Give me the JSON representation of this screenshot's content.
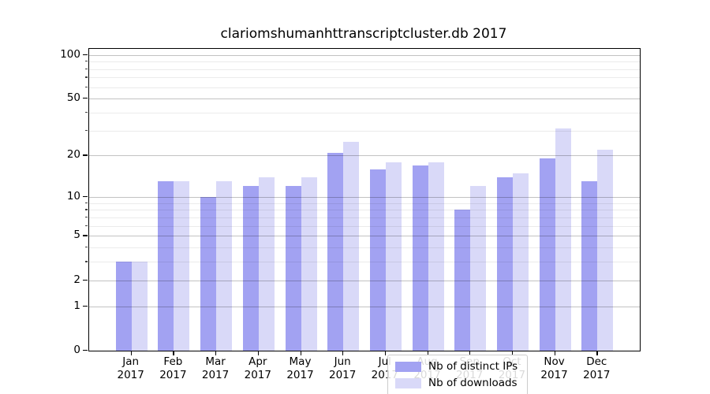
{
  "title": "clariomshumanhttranscriptcluster.db 2017",
  "legend": {
    "entries": [
      {
        "label": "Nb of distinct IPs",
        "color": "#a2a2f2"
      },
      {
        "label": "Nb of downloads",
        "color": "#d9d9f8"
      }
    ]
  },
  "colors": {
    "bar_ips": "#a2a2f2",
    "bar_downloads": "#d9d9f8",
    "axis": "#000000",
    "grid_major": "rgba(0,0,0,0.24)",
    "grid_minor": "rgba(0,0,0,0.08)",
    "background": "#ffffff"
  },
  "chart_data": {
    "type": "bar",
    "title": "clariomshumanhttranscriptcluster.db 2017",
    "categories": [
      "Jan",
      "Feb",
      "Mar",
      "Apr",
      "May",
      "Jun",
      "Jul",
      "Aug",
      "Sep",
      "Oct",
      "Nov",
      "Dec"
    ],
    "x_sublabel": "2017",
    "series": [
      {
        "name": "Nb of distinct IPs",
        "color": "#a2a2f2",
        "values": [
          3,
          13,
          10,
          12,
          12,
          21,
          16,
          17,
          8,
          14,
          19,
          13
        ]
      },
      {
        "name": "Nb of downloads",
        "color": "#d9d9f8",
        "values": [
          3,
          13,
          13,
          14,
          14,
          25,
          18,
          18,
          12,
          15,
          31,
          22
        ]
      }
    ],
    "xlabel": "",
    "ylabel": "",
    "yscale": "log1p",
    "ylim": [
      0,
      110
    ],
    "y_major_ticks": [
      0,
      1,
      2,
      5,
      10,
      20,
      50,
      100
    ],
    "y_minor_gridlines": [
      3,
      4,
      6,
      7,
      8,
      9,
      30,
      40,
      60,
      70,
      80,
      90
    ],
    "grid": true,
    "legend_position": "lower-center"
  }
}
